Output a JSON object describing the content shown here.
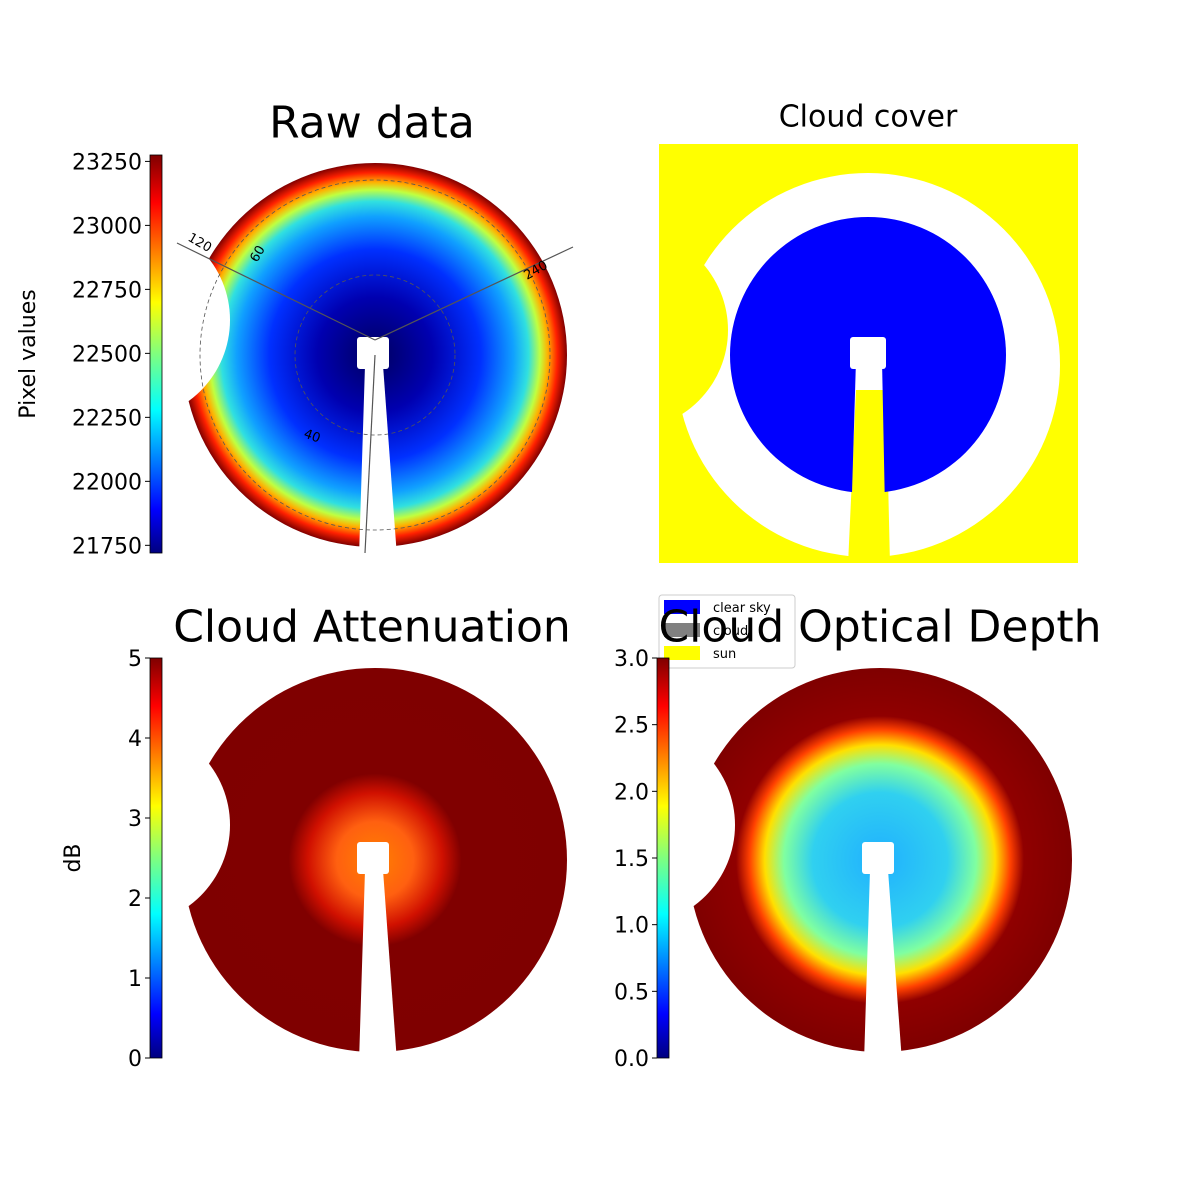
{
  "chart_data": [
    {
      "type": "image",
      "title": "Raw data",
      "colormap": "jet",
      "colorbar": {
        "label": "Pixel values",
        "lim": [
          21720,
          23275
        ],
        "ticks": [
          21750,
          22000,
          22250,
          22500,
          22750,
          23000,
          23250
        ]
      },
      "annotations": [
        "120",
        "60",
        "240",
        "40"
      ]
    },
    {
      "type": "class-image",
      "title": "Cloud cover",
      "series": [
        {
          "name": "clear sky",
          "color": "#0000ff"
        },
        {
          "name": "cloud",
          "color": "#808080"
        },
        {
          "name": "sun",
          "color": "#ffff00"
        }
      ]
    },
    {
      "type": "image",
      "title": "Cloud Attenuation",
      "colormap": "jet",
      "colorbar": {
        "label": "dB",
        "lim": [
          0,
          5
        ],
        "ticks": [
          0,
          1,
          2,
          3,
          4,
          5
        ]
      }
    },
    {
      "type": "image",
      "title": "Cloud Optical Depth",
      "colormap": "jet",
      "colorbar": {
        "lim": [
          0,
          3
        ],
        "ticks": [
          {
            "value": 0,
            "label": "0.0"
          },
          0.5,
          {
            "value": 1,
            "label": "1.0"
          },
          1.5,
          {
            "value": 2,
            "label": "2.0"
          },
          2.5,
          {
            "value": 3,
            "label": "3.0"
          }
        ]
      }
    }
  ]
}
